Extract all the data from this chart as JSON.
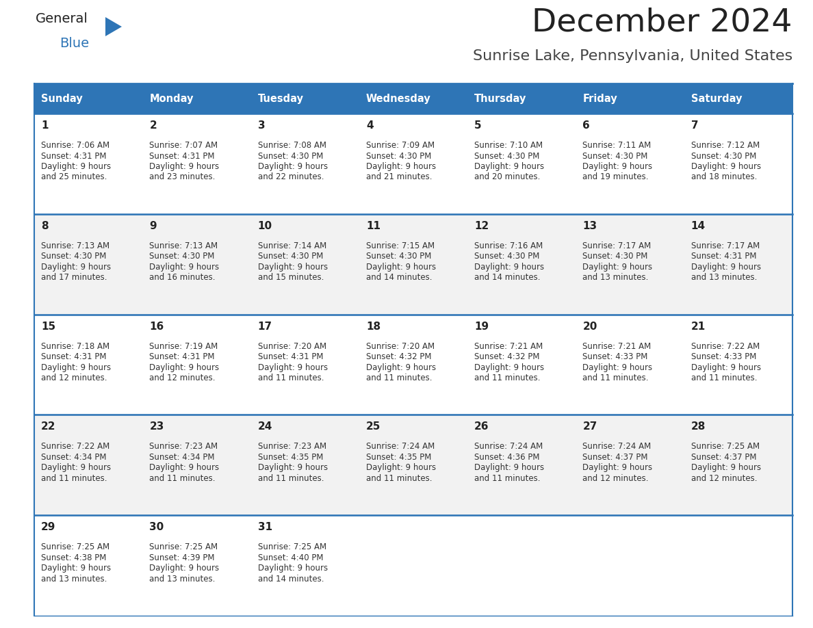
{
  "title": "December 2024",
  "subtitle": "Sunrise Lake, Pennsylvania, United States",
  "header_color": "#2E75B6",
  "header_text_color": "#FFFFFF",
  "cell_bg_color": "#FFFFFF",
  "alt_row_bg": "#F2F2F2",
  "border_color": "#2E75B6",
  "days_of_week": [
    "Sunday",
    "Monday",
    "Tuesday",
    "Wednesday",
    "Thursday",
    "Friday",
    "Saturday"
  ],
  "calendar_data": [
    [
      {
        "day": "1",
        "sunrise": "7:06 AM",
        "sunset": "4:31 PM",
        "daylight": "9 hours\nand 25 minutes."
      },
      {
        "day": "2",
        "sunrise": "7:07 AM",
        "sunset": "4:31 PM",
        "daylight": "9 hours\nand 23 minutes."
      },
      {
        "day": "3",
        "sunrise": "7:08 AM",
        "sunset": "4:30 PM",
        "daylight": "9 hours\nand 22 minutes."
      },
      {
        "day": "4",
        "sunrise": "7:09 AM",
        "sunset": "4:30 PM",
        "daylight": "9 hours\nand 21 minutes."
      },
      {
        "day": "5",
        "sunrise": "7:10 AM",
        "sunset": "4:30 PM",
        "daylight": "9 hours\nand 20 minutes."
      },
      {
        "day": "6",
        "sunrise": "7:11 AM",
        "sunset": "4:30 PM",
        "daylight": "9 hours\nand 19 minutes."
      },
      {
        "day": "7",
        "sunrise": "7:12 AM",
        "sunset": "4:30 PM",
        "daylight": "9 hours\nand 18 minutes."
      }
    ],
    [
      {
        "day": "8",
        "sunrise": "7:13 AM",
        "sunset": "4:30 PM",
        "daylight": "9 hours\nand 17 minutes."
      },
      {
        "day": "9",
        "sunrise": "7:13 AM",
        "sunset": "4:30 PM",
        "daylight": "9 hours\nand 16 minutes."
      },
      {
        "day": "10",
        "sunrise": "7:14 AM",
        "sunset": "4:30 PM",
        "daylight": "9 hours\nand 15 minutes."
      },
      {
        "day": "11",
        "sunrise": "7:15 AM",
        "sunset": "4:30 PM",
        "daylight": "9 hours\nand 14 minutes."
      },
      {
        "day": "12",
        "sunrise": "7:16 AM",
        "sunset": "4:30 PM",
        "daylight": "9 hours\nand 14 minutes."
      },
      {
        "day": "13",
        "sunrise": "7:17 AM",
        "sunset": "4:30 PM",
        "daylight": "9 hours\nand 13 minutes."
      },
      {
        "day": "14",
        "sunrise": "7:17 AM",
        "sunset": "4:31 PM",
        "daylight": "9 hours\nand 13 minutes."
      }
    ],
    [
      {
        "day": "15",
        "sunrise": "7:18 AM",
        "sunset": "4:31 PM",
        "daylight": "9 hours\nand 12 minutes."
      },
      {
        "day": "16",
        "sunrise": "7:19 AM",
        "sunset": "4:31 PM",
        "daylight": "9 hours\nand 12 minutes."
      },
      {
        "day": "17",
        "sunrise": "7:20 AM",
        "sunset": "4:31 PM",
        "daylight": "9 hours\nand 11 minutes."
      },
      {
        "day": "18",
        "sunrise": "7:20 AM",
        "sunset": "4:32 PM",
        "daylight": "9 hours\nand 11 minutes."
      },
      {
        "day": "19",
        "sunrise": "7:21 AM",
        "sunset": "4:32 PM",
        "daylight": "9 hours\nand 11 minutes."
      },
      {
        "day": "20",
        "sunrise": "7:21 AM",
        "sunset": "4:33 PM",
        "daylight": "9 hours\nand 11 minutes."
      },
      {
        "day": "21",
        "sunrise": "7:22 AM",
        "sunset": "4:33 PM",
        "daylight": "9 hours\nand 11 minutes."
      }
    ],
    [
      {
        "day": "22",
        "sunrise": "7:22 AM",
        "sunset": "4:34 PM",
        "daylight": "9 hours\nand 11 minutes."
      },
      {
        "day": "23",
        "sunrise": "7:23 AM",
        "sunset": "4:34 PM",
        "daylight": "9 hours\nand 11 minutes."
      },
      {
        "day": "24",
        "sunrise": "7:23 AM",
        "sunset": "4:35 PM",
        "daylight": "9 hours\nand 11 minutes."
      },
      {
        "day": "25",
        "sunrise": "7:24 AM",
        "sunset": "4:35 PM",
        "daylight": "9 hours\nand 11 minutes."
      },
      {
        "day": "26",
        "sunrise": "7:24 AM",
        "sunset": "4:36 PM",
        "daylight": "9 hours\nand 11 minutes."
      },
      {
        "day": "27",
        "sunrise": "7:24 AM",
        "sunset": "4:37 PM",
        "daylight": "9 hours\nand 12 minutes."
      },
      {
        "day": "28",
        "sunrise": "7:25 AM",
        "sunset": "4:37 PM",
        "daylight": "9 hours\nand 12 minutes."
      }
    ],
    [
      {
        "day": "29",
        "sunrise": "7:25 AM",
        "sunset": "4:38 PM",
        "daylight": "9 hours\nand 13 minutes."
      },
      {
        "day": "30",
        "sunrise": "7:25 AM",
        "sunset": "4:39 PM",
        "daylight": "9 hours\nand 13 minutes."
      },
      {
        "day": "31",
        "sunrise": "7:25 AM",
        "sunset": "4:40 PM",
        "daylight": "9 hours\nand 14 minutes."
      },
      null,
      null,
      null,
      null
    ]
  ],
  "logo_general_color": "#222222",
  "logo_blue_color": "#2E75B6",
  "title_color": "#222222",
  "subtitle_color": "#444444",
  "fig_width": 11.88,
  "fig_height": 9.18,
  "dpi": 100
}
